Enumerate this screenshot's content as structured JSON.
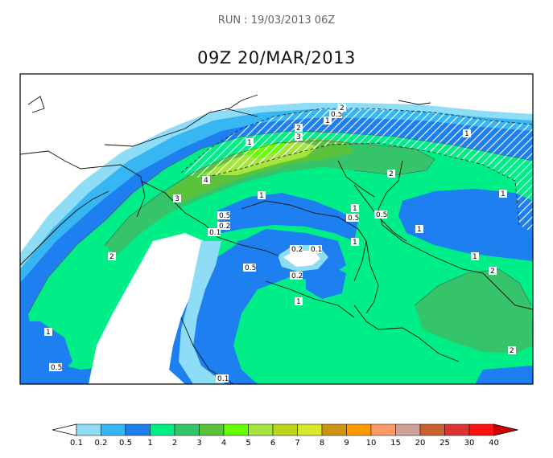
{
  "header": {
    "run_label": "RUN : 19/03/2013 06Z",
    "title": "09Z 20/MAR/2013"
  },
  "legend": {
    "values": [
      "0.1",
      "0.2",
      "0.5",
      "1",
      "2",
      "3",
      "4",
      "5",
      "6",
      "7",
      "8",
      "9",
      "10",
      "15",
      "20",
      "25",
      "30",
      "40"
    ],
    "colors": [
      "#ffffff",
      "#8fdcf7",
      "#36b7f3",
      "#1e7ff0",
      "#00ee88",
      "#36c46b",
      "#5bc23c",
      "#66ff00",
      "#a6e53d",
      "#bbd61a",
      "#d9e82a",
      "#cc9410",
      "#ff9a00",
      "#ff9966",
      "#d0a09a",
      "#c7622c",
      "#dd3333",
      "#ff1111",
      "#cc0000"
    ]
  },
  "map_labels": {
    "contour_labels": [
      "1",
      "0.5",
      "2",
      "3",
      "4",
      "1",
      "2",
      "0.5",
      "0.2",
      "0.1",
      "1",
      "2",
      "0.5",
      "1",
      "0.5",
      "1",
      "1",
      "1",
      "1",
      "0.2",
      "0.1",
      "0.5",
      "0.2",
      "1",
      "2",
      "1",
      "0.5",
      "0.1",
      "1",
      "2",
      "2",
      "3"
    ]
  }
}
